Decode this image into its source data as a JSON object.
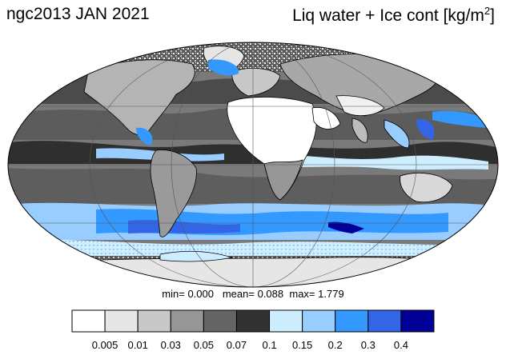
{
  "header": {
    "left_title": "ngc2013 JAN 2021",
    "right_title_main": "Liq water + Ice cont [kg/m",
    "right_title_sup": "2",
    "right_title_end": "]"
  },
  "stats": {
    "min_label": "min=",
    "min_value": "0.000",
    "mean_label": "mean=",
    "mean_value": "0.088",
    "max_label": "max=",
    "max_value": "1.779"
  },
  "colorbar": {
    "colors": [
      "#ffffff",
      "#e6e6e6",
      "#c8c8c8",
      "#969696",
      "#646464",
      "#323232",
      "#cdeeff",
      "#99ccff",
      "#3399ff",
      "#3366e6",
      "#000099"
    ],
    "labels": [
      "0.005",
      "0.01",
      "0.03",
      "0.05",
      "0.07",
      "0.1",
      "0.15",
      "0.2",
      "0.3",
      "0.4"
    ]
  },
  "map": {
    "projection": "mollweide",
    "background_color": "#ffffff",
    "land_outline_color": "#000000",
    "grid_color": "#555555"
  }
}
